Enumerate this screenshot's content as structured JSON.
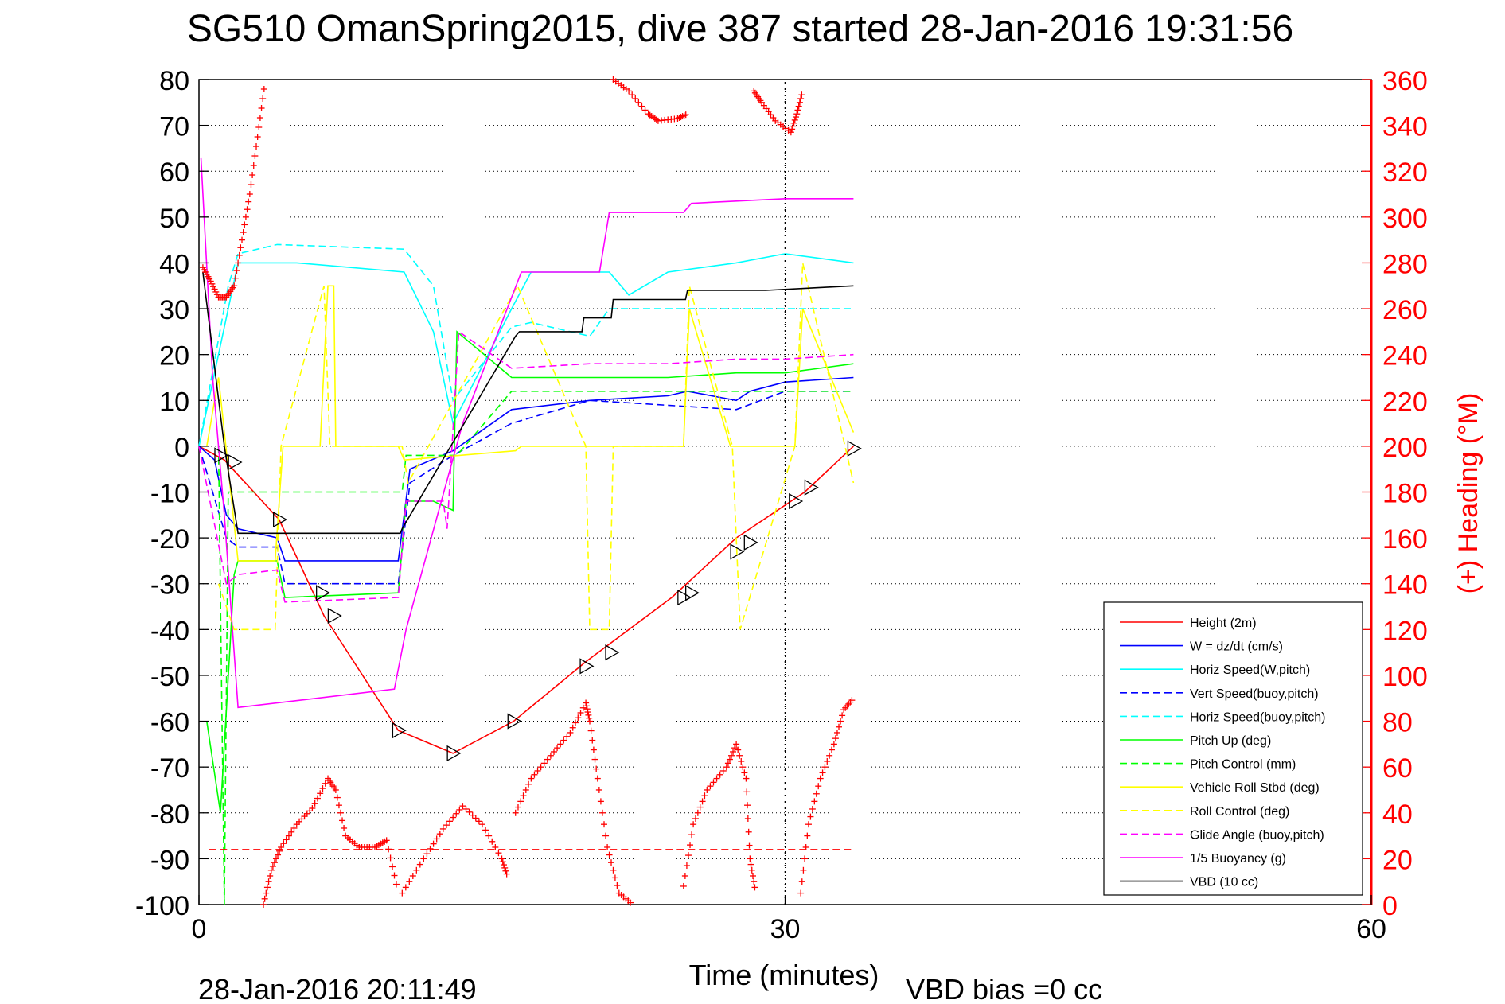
{
  "title": "SG510 OmanSpring2015, dive 387 started 28-Jan-2016 19:31:56",
  "footer": {
    "timestamp": "28-Jan-2016 20:11:49",
    "xlabel": "Time (minutes)",
    "vbd_bias": "VBD bias =0 cc"
  },
  "colors": {
    "height": "#ff0000",
    "w": "#0000ff",
    "horiz": "#00ffff",
    "pitch": "#00ff00",
    "roll": "#ffff00",
    "glide": "#ff00ff",
    "buoy": "#ff00ff",
    "vbd": "#000000",
    "heading": "#ff0000"
  },
  "chart_data": {
    "type": "line",
    "xlim": [
      0,
      60
    ],
    "ylim_left": [
      -100,
      80
    ],
    "ylim_right": [
      0,
      360
    ],
    "xticks": [
      "0",
      "30",
      "60"
    ],
    "yticks_left": [
      "80",
      "70",
      "60",
      "50",
      "40",
      "30",
      "20",
      "10",
      "0",
      "-10",
      "-20",
      "-30",
      "-40",
      "-50",
      "-60",
      "-70",
      "-80",
      "-90",
      "-100"
    ],
    "yticks_right": [
      "360",
      "340",
      "320",
      "300",
      "280",
      "260",
      "240",
      "220",
      "200",
      "180",
      "160",
      "140",
      "120",
      "100",
      "80",
      "60",
      "40",
      "20",
      "0"
    ],
    "ylabel_right": "(+) Heading (°M)",
    "grid": true,
    "legend_position": "bottom-right",
    "series": [
      {
        "name": "Height (2m)",
        "axis": "left",
        "style": "solid",
        "color": "#ff0000",
        "x": [
          0.0,
          1.3,
          4.1,
          6.4,
          10.2,
          13.0,
          16.1,
          19.8,
          24.2,
          27.5,
          31.0,
          33.5
        ],
        "y": [
          0,
          -3,
          -16,
          -37,
          -62,
          -67,
          -60,
          -47,
          -33,
          -20,
          -10,
          0
        ],
        "markers": [
          [
            1.1,
            -2
          ],
          [
            1.8,
            -3.5
          ],
          [
            4.1,
            -16
          ],
          [
            6.3,
            -32
          ],
          [
            6.9,
            -37
          ],
          [
            10.2,
            -62
          ],
          [
            13.0,
            -67
          ],
          [
            16.1,
            -60
          ],
          [
            19.8,
            -48
          ],
          [
            21.1,
            -45
          ],
          [
            24.8,
            -33
          ],
          [
            25.2,
            -32
          ],
          [
            27.5,
            -23
          ],
          [
            28.2,
            -21
          ],
          [
            30.5,
            -12
          ],
          [
            31.3,
            -9
          ],
          [
            33.5,
            -0.5
          ]
        ]
      },
      {
        "name": "W = dz/dt (cm/s)",
        "axis": "left",
        "style": "solid",
        "color": "#0000ff",
        "x": [
          0,
          0.8,
          1.4,
          2.0,
          4.0,
          4.4,
          10.2,
          10.8,
          13.0,
          16.0,
          20.0,
          24.0,
          25.0,
          27.5,
          28.2,
          30.0,
          33.5
        ],
        "y": [
          0,
          -3,
          -15,
          -18,
          -20,
          -25,
          -25,
          -5,
          -1,
          8,
          10,
          11,
          12,
          10,
          12,
          14,
          15
        ]
      },
      {
        "name": "Horiz Speed(W,pitch)",
        "axis": "left",
        "style": "solid",
        "color": "#00ffff",
        "x": [
          0,
          1.5,
          2.0,
          5.0,
          10.5,
          12.0,
          13.0,
          16.0,
          17.0,
          21.0,
          22.0,
          24.0,
          27.5,
          30.0,
          33.5
        ],
        "y": [
          0,
          30,
          40,
          40,
          38,
          25,
          5,
          30,
          38,
          38,
          33,
          38,
          40,
          42,
          40
        ]
      },
      {
        "name": "Vert Speed(buoy,pitch)",
        "axis": "left",
        "style": "dashed",
        "color": "#0000ff",
        "x": [
          0,
          1.4,
          2.0,
          4.0,
          4.4,
          10.2,
          10.8,
          13.0,
          16.0,
          20.0,
          27.5,
          30.0,
          33.5
        ],
        "y": [
          0,
          -20,
          -22,
          -22,
          -30,
          -30,
          -8,
          -2,
          5,
          10,
          8,
          12,
          12
        ]
      },
      {
        "name": "Horiz Speed(buoy,pitch)",
        "axis": "left",
        "style": "dashed",
        "color": "#00ffff",
        "x": [
          0,
          1.5,
          2.0,
          4.0,
          10.5,
          12.0,
          13.0,
          16.0,
          17.0,
          20.0,
          21.0,
          24.5,
          27.5,
          30.0,
          33.5
        ],
        "y": [
          0,
          35,
          42,
          44,
          43,
          35,
          10,
          26,
          27,
          24,
          30,
          30,
          30,
          30,
          30
        ]
      },
      {
        "name": "Pitch Up (deg)",
        "axis": "left",
        "style": "solid",
        "color": "#00ff00",
        "x": [
          0.4,
          1.1,
          1.8,
          2.0,
          4.0,
          4.4,
          10.2,
          10.6,
          12.0,
          13.0,
          13.2,
          16.0,
          20.0,
          24.0,
          27.5,
          30.0,
          33.5
        ],
        "y": [
          -60,
          -80,
          -28,
          -25,
          -25,
          -33,
          -32,
          -12,
          -12,
          -14,
          25,
          15,
          15,
          15,
          16,
          16,
          18
        ]
      },
      {
        "name": "Pitch Control (mm)",
        "axis": "left",
        "style": "dashed",
        "color": "#00ff00",
        "x": [
          1.0,
          1.3,
          1.5,
          2.0,
          10.4,
          10.6,
          13.2,
          16.0,
          20.0,
          27.5,
          33.5
        ],
        "y": [
          0,
          -100,
          -10,
          -10,
          -10,
          -2,
          -2,
          12,
          12,
          12,
          12
        ]
      },
      {
        "name": "Vehicle Roll Stbd (deg)",
        "axis": "left",
        "style": "solid",
        "color": "#ffff00",
        "x": [
          0.4,
          1.0,
          2.0,
          3.9,
          4.3,
          6.2,
          6.6,
          6.9,
          7.0,
          10.2,
          10.5,
          16.2,
          16.5,
          24.8,
          25.1,
          27.2,
          27.5,
          30.5,
          30.9,
          33.5
        ],
        "y": [
          0,
          15,
          -25,
          -25,
          0,
          0,
          35,
          35,
          0,
          0,
          -3,
          -1,
          0,
          0,
          30,
          0,
          0,
          0,
          30,
          3
        ]
      },
      {
        "name": "Roll Control (deg)",
        "axis": "left",
        "style": "dashed",
        "color": "#ffff00",
        "x": [
          1.0,
          1.8,
          3.9,
          4.2,
          6.4,
          6.7,
          10.4,
          10.7,
          16.3,
          19.8,
          20.0,
          21.0,
          21.2,
          24.8,
          25.1,
          27.3,
          27.7,
          30.5,
          30.9,
          33.5
        ],
        "y": [
          -30,
          -40,
          -40,
          0,
          35,
          0,
          0,
          -8,
          35,
          0,
          -40,
          -40,
          0,
          0,
          35,
          0,
          -40,
          0,
          40,
          -8
        ]
      },
      {
        "name": "Glide Angle (buoy,pitch)",
        "axis": "left",
        "style": "dashed",
        "color": "#ff00ff",
        "x": [
          0,
          1.4,
          2.0,
          4.0,
          4.4,
          10.2,
          10.6,
          12.5,
          12.7,
          13.3,
          16.0,
          20.0,
          24.0,
          27.5,
          30.0,
          33.5
        ],
        "y": [
          0,
          -30,
          -28,
          -27,
          -34,
          -33,
          -12,
          -12,
          -18,
          25,
          17,
          18,
          18,
          19,
          19,
          20
        ]
      },
      {
        "name": "1/5 Buoyancy (g)",
        "axis": "left",
        "style": "solid",
        "color": "#ff00ff",
        "x": [
          0.1,
          0.7,
          1.3,
          2.0,
          10.0,
          10.6,
          13.5,
          16.5,
          20.5,
          21.0,
          24.8,
          25.2,
          30.0,
          33.5
        ],
        "y": [
          63,
          15,
          -15,
          -57,
          -53,
          -40,
          5,
          38,
          38,
          51,
          51,
          53,
          54,
          54
        ]
      },
      {
        "name": "VBD (10 cc)",
        "axis": "left",
        "style": "solid",
        "color": "#000000",
        "x": [
          0.2,
          1.3,
          2.0,
          10.3,
          10.4,
          16.2,
          16.4,
          19.6,
          19.7,
          21.1,
          21.2,
          24.9,
          25.0,
          29.0,
          33.5
        ],
        "y": [
          38,
          0,
          -19,
          -19,
          -18,
          24,
          25,
          25,
          28,
          28,
          32,
          32,
          34,
          34,
          35
        ]
      },
      {
        "name": "Heading",
        "axis": "right",
        "style": "plus-markers",
        "color": "#ff0000",
        "segments": [
          {
            "x": [
              0.2,
              0.6,
              1.0,
              1.4,
              1.8,
              2.2,
              2.6,
              3.0,
              3.4
            ],
            "y": [
              278,
              272,
              265,
              265,
              270,
              290,
              310,
              335,
              360
            ]
          },
          {
            "x": [
              3.3,
              3.7,
              4.2,
              5.0,
              5.8,
              6.6,
              7.0,
              7.5,
              8.2,
              9.0,
              9.6,
              10.2
            ],
            "y": [
              0,
              15,
              25,
              35,
              42,
              55,
              50,
              30,
              25,
              25,
              28,
              5
            ]
          },
          {
            "x": [
              10.4,
              11.5,
              12.5,
              13.5,
              14.5,
              15.5,
              15.8
            ],
            "y": [
              5,
              20,
              33,
              43,
              35,
              20,
              12
            ]
          },
          {
            "x": [
              16.2,
              17.0,
              18.0,
              19.0,
              19.8,
              20.0,
              20.4,
              20.9,
              21.5,
              22.2
            ],
            "y": [
              40,
              55,
              65,
              75,
              88,
              80,
              55,
              25,
              5,
              0
            ]
          },
          {
            "x": [
              21.2,
              22.0,
              23.0,
              23.5,
              24.5,
              25.0
            ],
            "y": [
              360,
              355,
              345,
              342,
              343,
              345
            ]
          },
          {
            "x": [
              24.8,
              25.3,
              26.0,
              27.0,
              27.5,
              28.0,
              28.2,
              28.5
            ],
            "y": [
              8,
              35,
              50,
              60,
              70,
              55,
              20,
              5
            ]
          },
          {
            "x": [
              28.4,
              28.8,
              29.5,
              30.3,
              30.6,
              30.9
            ],
            "y": [
              355,
              350,
              342,
              337,
              345,
              355
            ]
          },
          {
            "x": [
              30.8,
              31.2,
              31.8,
              32.5,
              33.0,
              33.5
            ],
            "y": [
              5,
              35,
              55,
              70,
              85,
              90
            ]
          }
        ]
      },
      {
        "name": "Heading ref",
        "axis": "left",
        "style": "dashed",
        "color": "#ff0000",
        "x": [
          0.5,
          33.5
        ],
        "y": [
          -88,
          -88
        ]
      },
      {
        "name": "Vertical ref",
        "axis": "left",
        "style": "dotted-black",
        "color": "#000000",
        "x": [
          30,
          30
        ],
        "y": [
          -100,
          80
        ]
      }
    ],
    "legend": [
      {
        "label": "Height (2m)",
        "color": "#ff0000",
        "style": "solid"
      },
      {
        "label": "W = dz/dt (cm/s)",
        "color": "#0000ff",
        "style": "solid"
      },
      {
        "label": "Horiz Speed(W,pitch)",
        "color": "#00ffff",
        "style": "solid"
      },
      {
        "label": "Vert Speed(buoy,pitch)",
        "color": "#0000ff",
        "style": "dashed"
      },
      {
        "label": "Horiz Speed(buoy,pitch)",
        "color": "#00ffff",
        "style": "dashed"
      },
      {
        "label": "Pitch Up (deg)",
        "color": "#00ff00",
        "style": "solid"
      },
      {
        "label": "Pitch Control (mm)",
        "color": "#00ff00",
        "style": "dashed"
      },
      {
        "label": "Vehicle Roll Stbd (deg)",
        "color": "#ffff00",
        "style": "solid"
      },
      {
        "label": "Roll Control (deg)",
        "color": "#ffff00",
        "style": "dashed"
      },
      {
        "label": "Glide Angle (buoy,pitch)",
        "color": "#ff00ff",
        "style": "dashed"
      },
      {
        "label": "1/5 Buoyancy (g)",
        "color": "#ff00ff",
        "style": "solid"
      },
      {
        "label": "VBD (10 cc)",
        "color": "#000000",
        "style": "solid"
      }
    ]
  }
}
